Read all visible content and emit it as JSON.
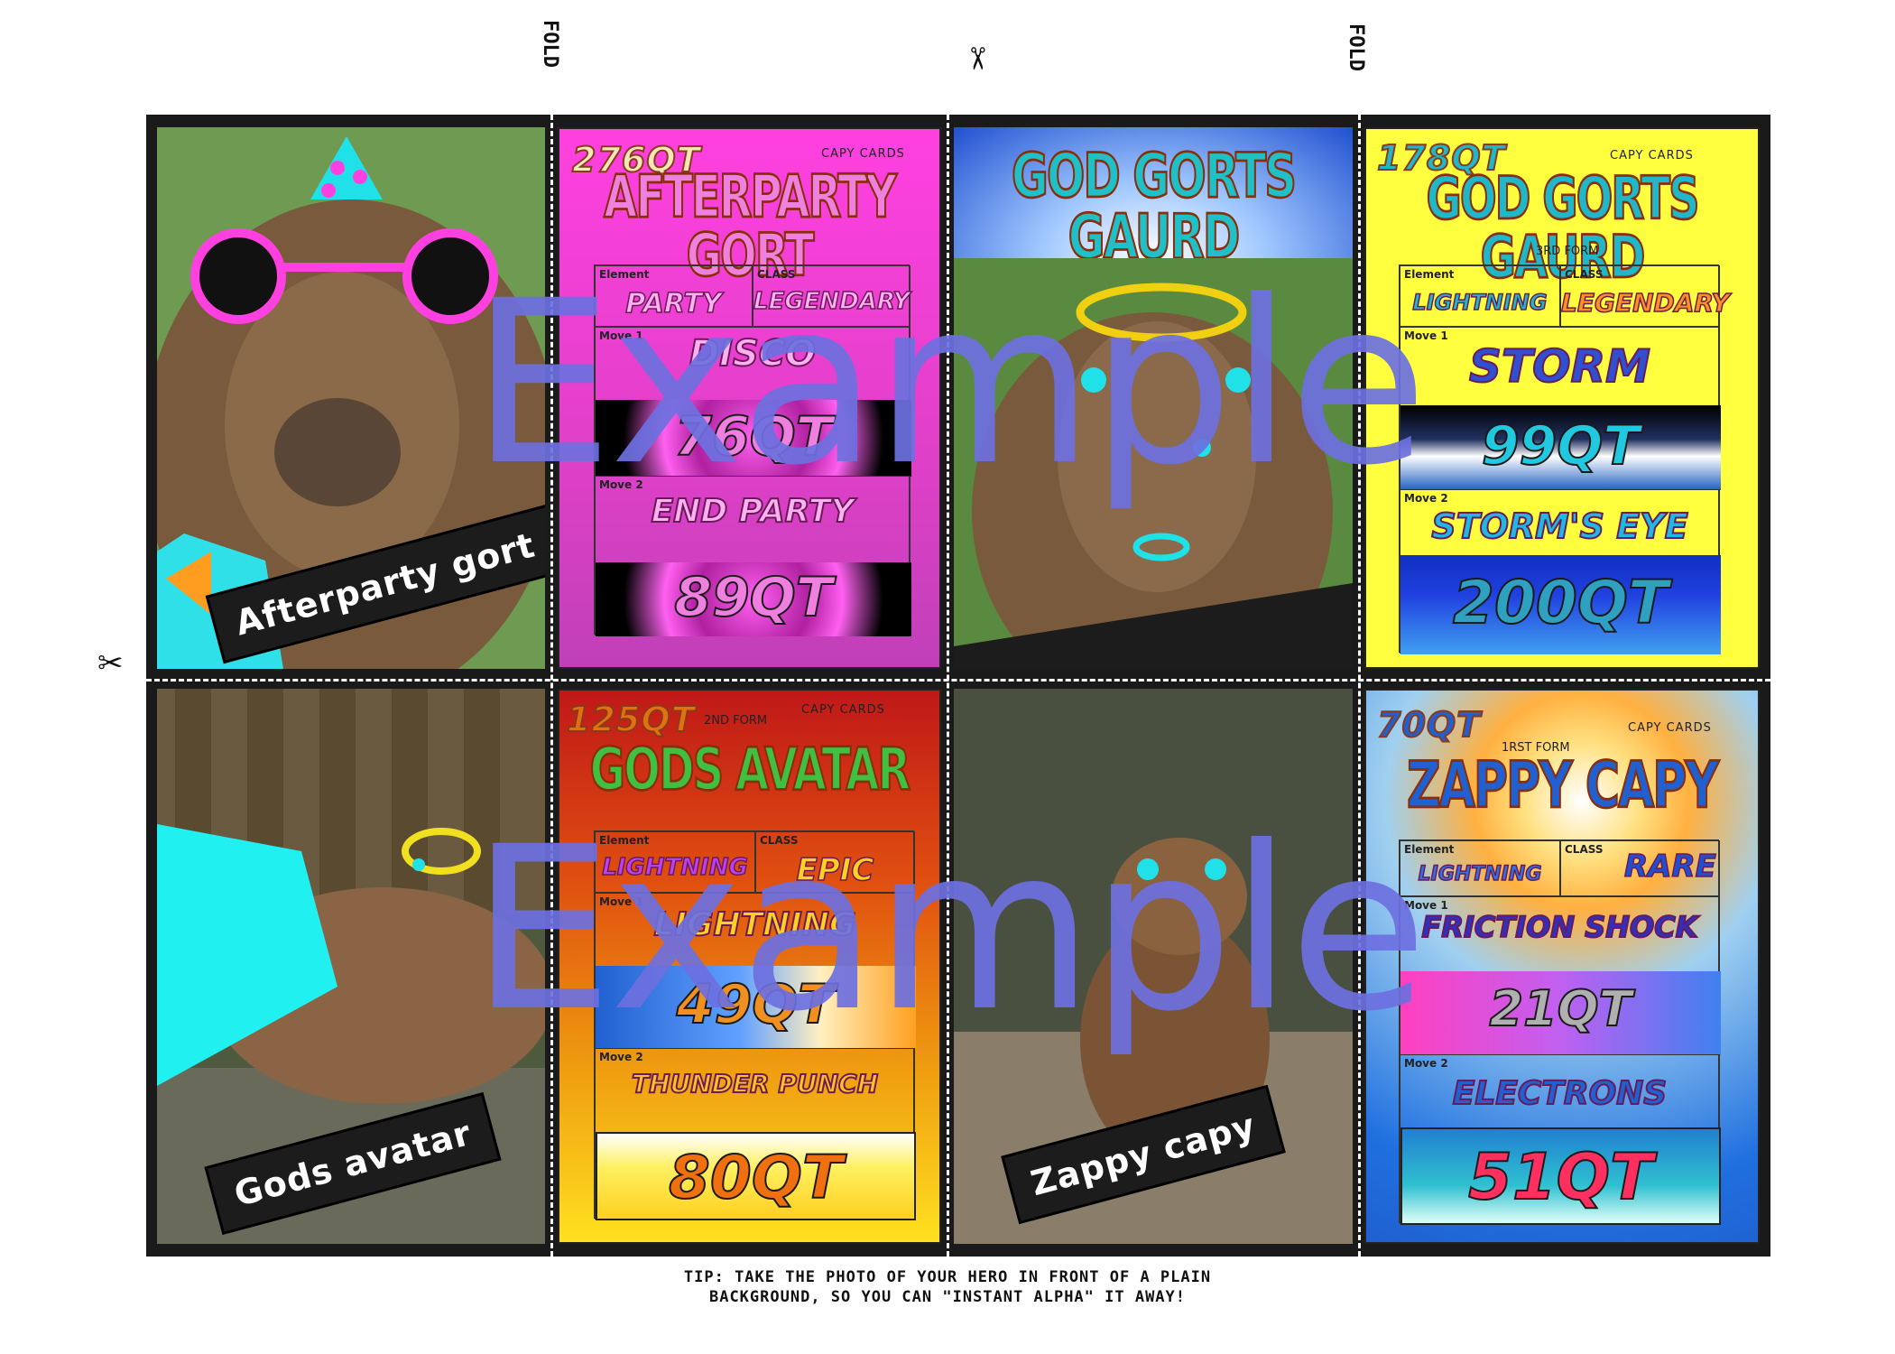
{
  "guides": {
    "fold_label": "FOLD",
    "scissor_glyph": "✂"
  },
  "cards": [
    {
      "photo_caption": "Afterparty gort",
      "cost": "276QT",
      "brand": "CAPY CARDS",
      "form": "",
      "name": "AFTERPARTY GORT",
      "element_label": "Element",
      "element": "PARTY",
      "class_label": "CLASS",
      "class": "LEGENDARY",
      "move1_label": "Move 1",
      "move1": "DISCO",
      "move1_qt": "76QT",
      "move2_label": "Move 2",
      "move2": "END PARTY",
      "move2_qt": "89QT"
    },
    {
      "photo_caption": "",
      "banner": "GOD GORTS GAURD",
      "cost": "178QT",
      "brand": "CAPY CARDS",
      "form": "3RD FORM",
      "name": "GOD GORTS GAURD",
      "element_label": "Element",
      "element": "LIGHTNING",
      "class_label": "CLASS",
      "class": "LEGENDARY",
      "move1_label": "Move 1",
      "move1": "STORM",
      "move1_qt": "99QT",
      "move2_label": "Move 2",
      "move2": "STORM'S EYE",
      "move2_qt": "200QT"
    },
    {
      "photo_caption": "Gods avatar",
      "cost": "125QT",
      "brand": "CAPY CARDS",
      "form": "2ND FORM",
      "name": "GODS AVATAR",
      "element_label": "Element",
      "element": "LIGHTNING",
      "class_label": "CLASS",
      "class": "EPIC",
      "move1_label": "Move 1",
      "move1": "LIGHTNING",
      "move1_qt": "49QT",
      "move2_label": "Move 2",
      "move2": "THUNDER PUNCH",
      "move2_qt": "80QT"
    },
    {
      "photo_caption": "Zappy capy",
      "cost": "70QT",
      "brand": "CAPY CARDS",
      "form": "1RST FORM",
      "name": "ZAPPY CAPY",
      "element_label": "Element",
      "element": "LIGHTNING",
      "class_label": "CLASS",
      "class": "RARE",
      "move1_label": "Move 1",
      "move1": "FRICTION SHOCK",
      "move1_qt": "21QT",
      "move2_label": "Move 2",
      "move2": "ELECTRONS",
      "move2_qt": "51QT"
    }
  ],
  "watermark": "Example",
  "tip_line1": "TIP: TAKE THE PHOTO OF YOUR HERO IN FRONT OF A PLAIN",
  "tip_line2": "BACKGROUND, SO YOU CAN \"INSTANT ALPHA\" IT AWAY!",
  "colors": {
    "card1_bg": "#e040c8",
    "card2_bg": "#ffff40",
    "card3_bg": "#e06010",
    "card4_bg": "#4090e0",
    "board": "#1a1a1a",
    "watermark": "#6c70e0"
  }
}
